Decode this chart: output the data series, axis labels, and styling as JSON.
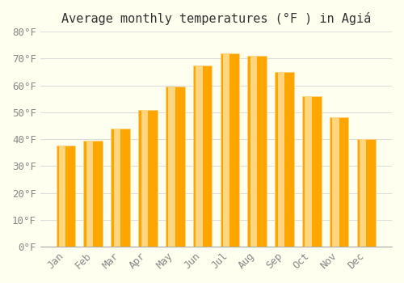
{
  "title": "Average monthly temperatures (°F ) in Agiá",
  "months": [
    "Jan",
    "Feb",
    "Mar",
    "Apr",
    "May",
    "Jun",
    "Jul",
    "Aug",
    "Sep",
    "Oct",
    "Nov",
    "Dec"
  ],
  "values": [
    37.5,
    39.5,
    44.0,
    51.0,
    59.5,
    67.5,
    72.0,
    71.0,
    65.0,
    56.0,
    48.0,
    40.0
  ],
  "bar_color_main": "#FFA500",
  "bar_color_light": "#FFD580",
  "background_color": "#FFFFF0",
  "grid_color": "#DDDDDD",
  "ylim": [
    0,
    80
  ],
  "yticks": [
    0,
    10,
    20,
    30,
    40,
    50,
    60,
    70,
    80
  ],
  "title_fontsize": 11,
  "tick_fontsize": 9
}
